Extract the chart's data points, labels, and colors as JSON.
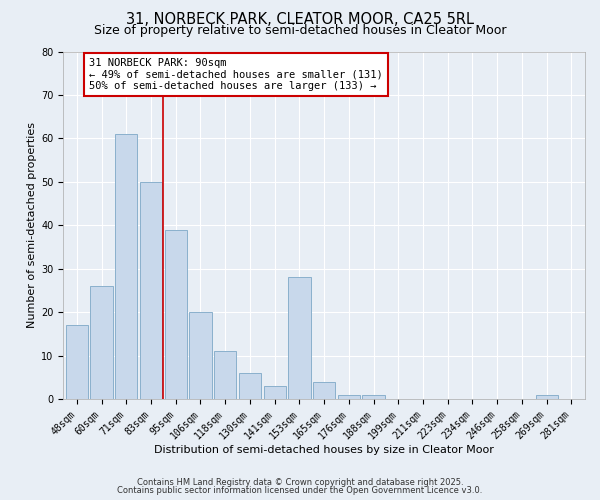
{
  "title1": "31, NORBECK PARK, CLEATOR MOOR, CA25 5RL",
  "title2": "Size of property relative to semi-detached houses in Cleator Moor",
  "xlabel": "Distribution of semi-detached houses by size in Cleator Moor",
  "ylabel": "Number of semi-detached properties",
  "categories": [
    "48sqm",
    "60sqm",
    "71sqm",
    "83sqm",
    "95sqm",
    "106sqm",
    "118sqm",
    "130sqm",
    "141sqm",
    "153sqm",
    "165sqm",
    "176sqm",
    "188sqm",
    "199sqm",
    "211sqm",
    "223sqm",
    "234sqm",
    "246sqm",
    "258sqm",
    "269sqm",
    "281sqm"
  ],
  "values": [
    17,
    26,
    61,
    50,
    39,
    20,
    11,
    6,
    3,
    28,
    4,
    1,
    1,
    0,
    0,
    0,
    0,
    0,
    0,
    1,
    0
  ],
  "bar_color": "#c8d8eb",
  "bar_edge_color": "#8ab0cc",
  "annotation_title": "31 NORBECK PARK: 90sqm",
  "annotation_line1": "← 49% of semi-detached houses are smaller (131)",
  "annotation_line2": "50% of semi-detached houses are larger (133) →",
  "annotation_box_color": "#ffffff",
  "annotation_box_edge": "#cc0000",
  "vline_color": "#cc0000",
  "ylim": [
    0,
    80
  ],
  "yticks": [
    0,
    10,
    20,
    30,
    40,
    50,
    60,
    70,
    80
  ],
  "background_color": "#e8eef5",
  "plot_bg_color": "#e8eef5",
  "footer1": "Contains HM Land Registry data © Crown copyright and database right 2025.",
  "footer2": "Contains public sector information licensed under the Open Government Licence v3.0.",
  "title1_fontsize": 10.5,
  "title2_fontsize": 9,
  "xlabel_fontsize": 8,
  "ylabel_fontsize": 8,
  "tick_fontsize": 7,
  "annotation_fontsize": 7.5,
  "footer_fontsize": 6
}
